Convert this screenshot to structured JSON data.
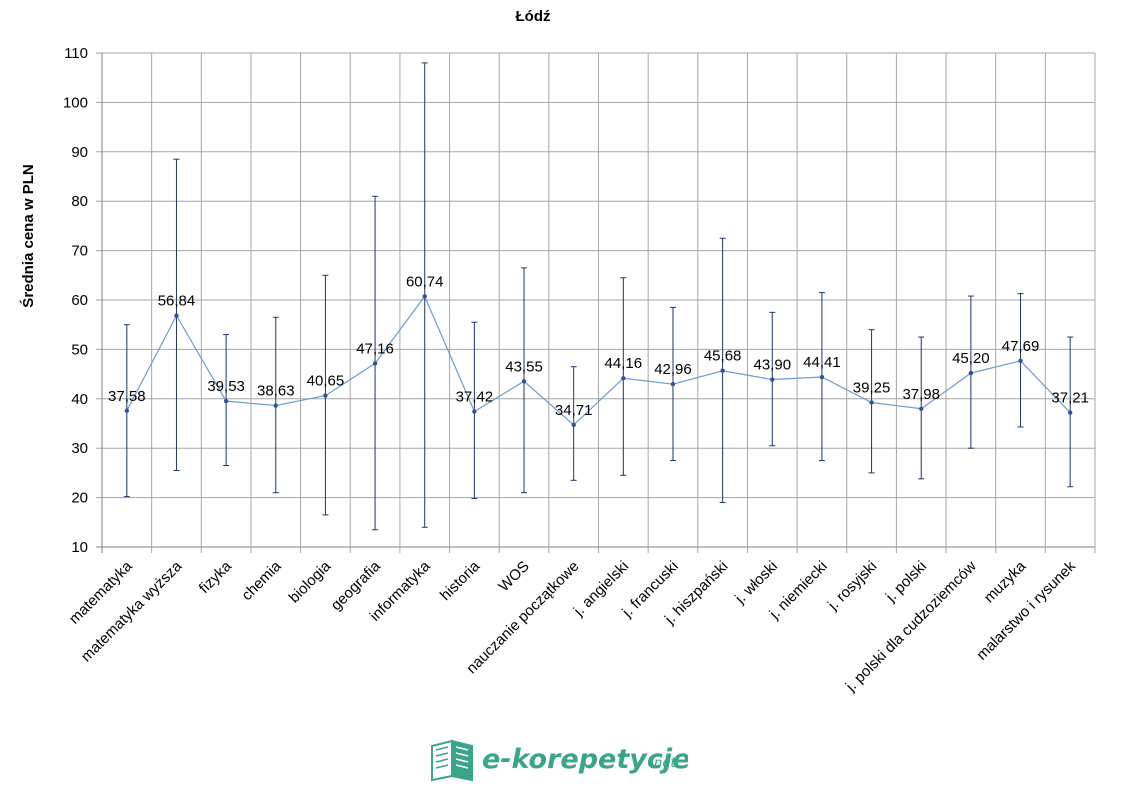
{
  "chart_data": {
    "type": "line",
    "title": "Łódź",
    "ylabel": "Średnia cena w PLN",
    "xlabel": "",
    "ylim": [
      10,
      110
    ],
    "yticks": [
      10,
      20,
      30,
      40,
      50,
      60,
      70,
      80,
      90,
      100,
      110
    ],
    "grid": true,
    "categories": [
      "matematyka",
      "matematyka wyższa",
      "fizyka",
      "chemia",
      "biologia",
      "geografia",
      "informatyka",
      "historia",
      "WOS",
      "nauczanie początkowe",
      "j. angielski",
      "j. francuski",
      "j. hiszpański",
      "j. włoski",
      "j. niemiecki",
      "j. rosyjski",
      "j. polski",
      "j. polski dla cudzoziemców",
      "muzyka",
      "malarstwo i rysunek"
    ],
    "series": [
      {
        "values": [
          37.58,
          56.84,
          39.53,
          38.63,
          40.65,
          47.16,
          60.74,
          37.42,
          43.55,
          34.71,
          44.16,
          42.96,
          45.68,
          43.9,
          44.41,
          39.25,
          37.98,
          45.2,
          47.69,
          37.21
        ],
        "value_labels": [
          "37,58",
          "56,84",
          "39,53",
          "38,63",
          "40,65",
          "47,16",
          "60,74",
          "37,42",
          "43,55",
          "34,71",
          "44,16",
          "42,96",
          "45,68",
          "43,90",
          "44,41",
          "39,25",
          "37,98",
          "45,20",
          "47,69",
          "37,21"
        ],
        "error_high": [
          55,
          88.5,
          53,
          56.5,
          65,
          81,
          108,
          55.5,
          66.5,
          46.5,
          64.5,
          58.5,
          72.5,
          57.5,
          61.5,
          54,
          52.5,
          60.8,
          61.3,
          52.5
        ],
        "error_low": [
          20.2,
          25.5,
          26.5,
          21,
          16.5,
          13.5,
          14,
          19.8,
          21,
          23.5,
          24.5,
          27.5,
          19,
          30.5,
          27.5,
          25,
          23.8,
          30,
          34.3,
          22.2
        ]
      }
    ],
    "colors": {
      "line": "#6f9bcf",
      "marker": "#2f5496",
      "error_bar": "#1f3864",
      "grid": "#a6a6a6"
    }
  },
  "logo": {
    "name": "e-korepetycje",
    "suffix": ".net",
    "color": "#3aa58a",
    "icon": "open-book-icon"
  }
}
